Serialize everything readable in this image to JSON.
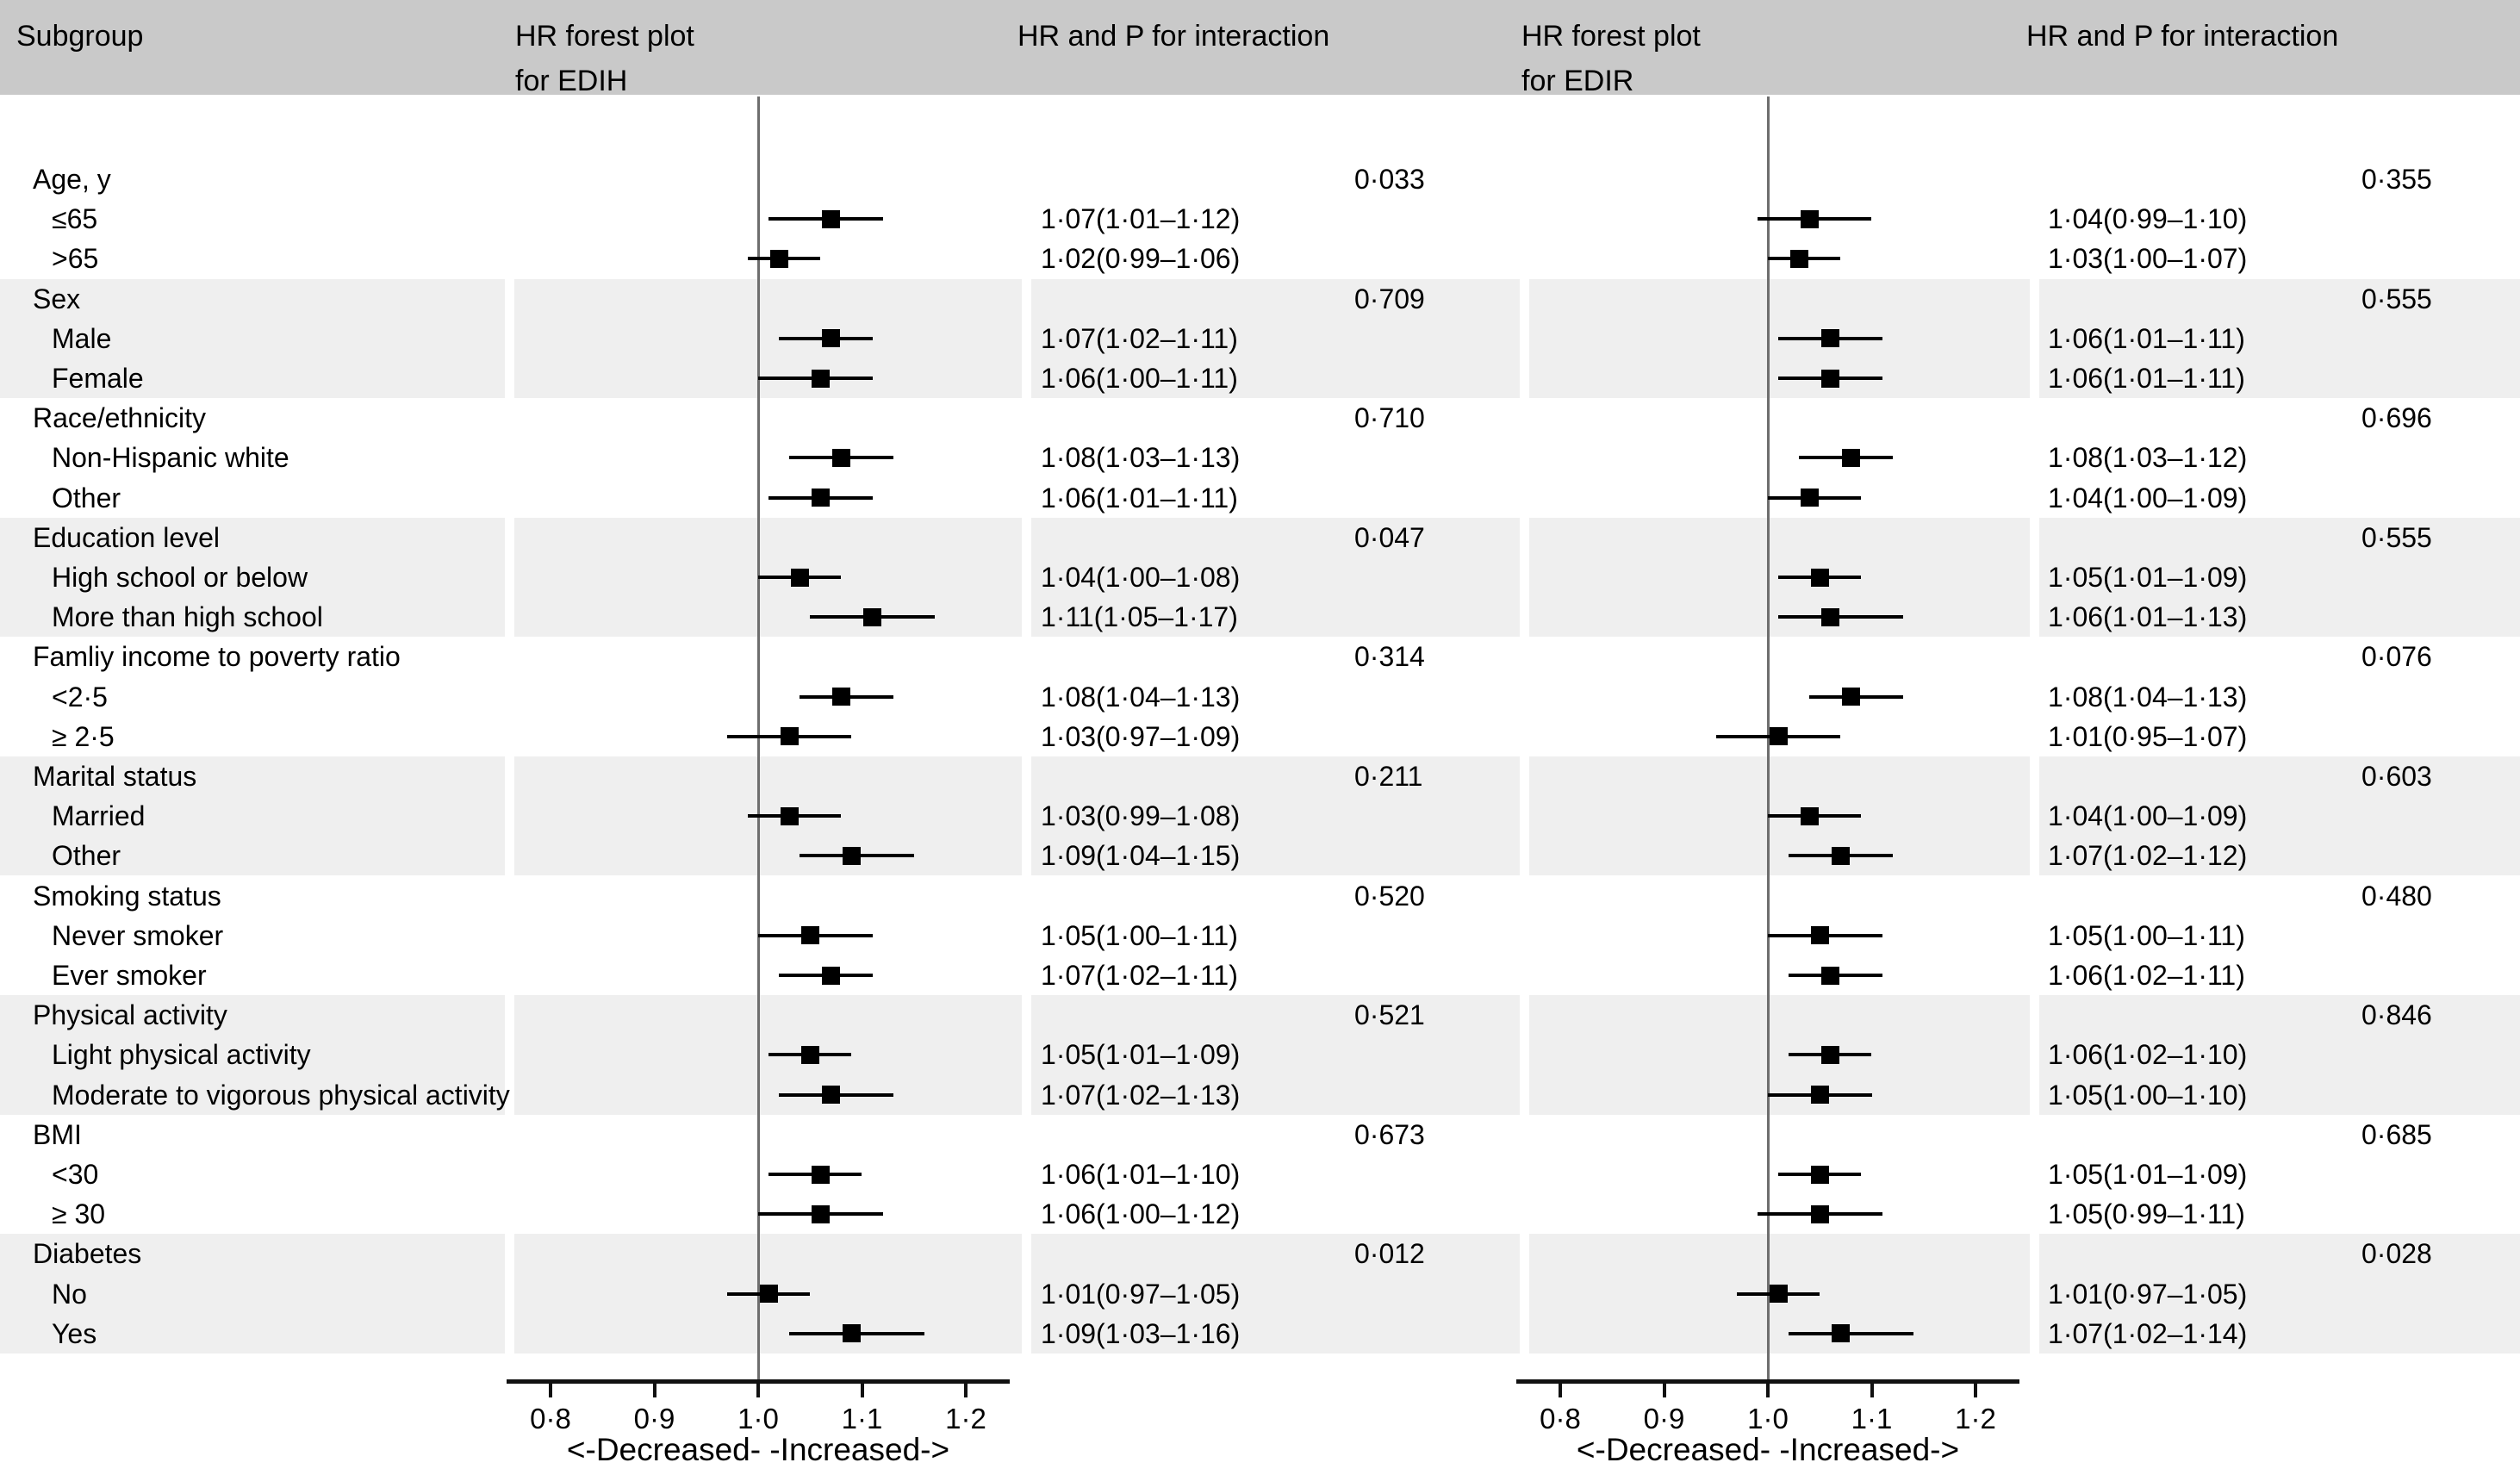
{
  "header": {
    "col_subgroup": "Subgroup",
    "col_plot1_line1": "HR forest plot",
    "col_plot1_line2": "for EDIH",
    "col_hrp1": "HR and P for interaction",
    "col_plot2_line1": "HR forest plot",
    "col_plot2_line2": "for EDIR",
    "col_hrp2": "HR and P for interaction"
  },
  "axis": {
    "tick_labels": [
      "0·8",
      "0·9",
      "1·0",
      "1·1",
      "1·2"
    ],
    "tick_values": [
      0.8,
      0.9,
      1.0,
      1.1,
      1.2
    ],
    "range": [
      0.758,
      1.242
    ],
    "reference_value": 1.0,
    "direction_label": "<-Decreased- -Increased->"
  },
  "colors": {
    "header_bg": "#c9c9c9",
    "stripe_bg": "#efefef",
    "marker": "#000000",
    "reference_line": "#6e6e6e",
    "axis_line": "#111111",
    "text": "#000000"
  },
  "chart_data": {
    "type": "scatter",
    "variant": "forest-plot",
    "panels": [
      "EDIH",
      "EDIR"
    ],
    "xlabel": "<-Decreased- -Increased->",
    "xlim": [
      0.758,
      1.242
    ],
    "x_ticks": [
      0.8,
      0.9,
      1.0,
      1.1,
      1.2
    ],
    "reference_line": 1.0,
    "groups": [
      {
        "label": "Age, y",
        "p_edih": "0·033",
        "p_edir": "0·355",
        "items": [
          {
            "label": "≤65",
            "edih": {
              "hr": 1.07,
              "lo": 1.01,
              "hi": 1.12,
              "text": "1·07(1·01–1·12)"
            },
            "edir": {
              "hr": 1.04,
              "lo": 0.99,
              "hi": 1.1,
              "text": "1·04(0·99–1·10)"
            }
          },
          {
            "label": ">65",
            "edih": {
              "hr": 1.02,
              "lo": 0.99,
              "hi": 1.06,
              "text": "1·02(0·99–1·06)"
            },
            "edir": {
              "hr": 1.03,
              "lo": 1.0,
              "hi": 1.07,
              "text": "1·03(1·00–1·07)"
            }
          }
        ]
      },
      {
        "label": "Sex",
        "p_edih": "0·709",
        "p_edir": "0·555",
        "items": [
          {
            "label": "Male",
            "edih": {
              "hr": 1.07,
              "lo": 1.02,
              "hi": 1.11,
              "text": "1·07(1·02–1·11)"
            },
            "edir": {
              "hr": 1.06,
              "lo": 1.01,
              "hi": 1.11,
              "text": "1·06(1·01–1·11)"
            }
          },
          {
            "label": "Female",
            "edih": {
              "hr": 1.06,
              "lo": 1.0,
              "hi": 1.11,
              "text": "1·06(1·00–1·11)"
            },
            "edir": {
              "hr": 1.06,
              "lo": 1.01,
              "hi": 1.11,
              "text": "1·06(1·01–1·11)"
            }
          }
        ]
      },
      {
        "label": "Race/ethnicity",
        "p_edih": "0·710",
        "p_edir": "0·696",
        "items": [
          {
            "label": "Non-Hispanic white",
            "edih": {
              "hr": 1.08,
              "lo": 1.03,
              "hi": 1.13,
              "text": "1·08(1·03–1·13)"
            },
            "edir": {
              "hr": 1.08,
              "lo": 1.03,
              "hi": 1.12,
              "text": "1·08(1·03–1·12)"
            }
          },
          {
            "label": "Other",
            "edih": {
              "hr": 1.06,
              "lo": 1.01,
              "hi": 1.11,
              "text": "1·06(1·01–1·11)"
            },
            "edir": {
              "hr": 1.04,
              "lo": 1.0,
              "hi": 1.09,
              "text": "1·04(1·00–1·09)"
            }
          }
        ]
      },
      {
        "label": "Education level",
        "p_edih": "0·047",
        "p_edir": "0·555",
        "items": [
          {
            "label": "High school or below",
            "edih": {
              "hr": 1.04,
              "lo": 1.0,
              "hi": 1.08,
              "text": "1·04(1·00–1·08)"
            },
            "edir": {
              "hr": 1.05,
              "lo": 1.01,
              "hi": 1.09,
              "text": "1·05(1·01–1·09)"
            }
          },
          {
            "label": "More than high school",
            "edih": {
              "hr": 1.11,
              "lo": 1.05,
              "hi": 1.17,
              "text": "1·11(1·05–1·17)"
            },
            "edir": {
              "hr": 1.06,
              "lo": 1.01,
              "hi": 1.13,
              "text": "1·06(1·01–1·13)"
            }
          }
        ]
      },
      {
        "label": "Famliy income to poverty ratio",
        "p_edih": "0·314",
        "p_edir": "0·076",
        "items": [
          {
            "label": "<2·5",
            "edih": {
              "hr": 1.08,
              "lo": 1.04,
              "hi": 1.13,
              "text": "1·08(1·04–1·13)"
            },
            "edir": {
              "hr": 1.08,
              "lo": 1.04,
              "hi": 1.13,
              "text": "1·08(1·04–1·13)"
            }
          },
          {
            "label": "≥ 2·5",
            "edih": {
              "hr": 1.03,
              "lo": 0.97,
              "hi": 1.09,
              "text": "1·03(0·97–1·09)"
            },
            "edir": {
              "hr": 1.01,
              "lo": 0.95,
              "hi": 1.07,
              "text": "1·01(0·95–1·07)"
            }
          }
        ]
      },
      {
        "label": "Marital status",
        "p_edih": "0·211",
        "p_edir": "0·603",
        "items": [
          {
            "label": "Married",
            "edih": {
              "hr": 1.03,
              "lo": 0.99,
              "hi": 1.08,
              "text": "1·03(0·99–1·08)"
            },
            "edir": {
              "hr": 1.04,
              "lo": 1.0,
              "hi": 1.09,
              "text": "1·04(1·00–1·09)"
            }
          },
          {
            "label": "Other",
            "edih": {
              "hr": 1.09,
              "lo": 1.04,
              "hi": 1.15,
              "text": "1·09(1·04–1·15)"
            },
            "edir": {
              "hr": 1.07,
              "lo": 1.02,
              "hi": 1.12,
              "text": "1·07(1·02–1·12)"
            }
          }
        ]
      },
      {
        "label": "Smoking status",
        "p_edih": "0·520",
        "p_edir": "0·480",
        "items": [
          {
            "label": "Never smoker",
            "edih": {
              "hr": 1.05,
              "lo": 1.0,
              "hi": 1.11,
              "text": "1·05(1·00–1·11)"
            },
            "edir": {
              "hr": 1.05,
              "lo": 1.0,
              "hi": 1.11,
              "text": "1·05(1·00–1·11)"
            }
          },
          {
            "label": "Ever smoker",
            "edih": {
              "hr": 1.07,
              "lo": 1.02,
              "hi": 1.11,
              "text": "1·07(1·02–1·11)"
            },
            "edir": {
              "hr": 1.06,
              "lo": 1.02,
              "hi": 1.11,
              "text": "1·06(1·02–1·11)"
            }
          }
        ]
      },
      {
        "label": "Physical activity",
        "p_edih": "0·521",
        "p_edir": "0·846",
        "items": [
          {
            "label": "Light physical activity",
            "edih": {
              "hr": 1.05,
              "lo": 1.01,
              "hi": 1.09,
              "text": "1·05(1·01–1·09)"
            },
            "edir": {
              "hr": 1.06,
              "lo": 1.02,
              "hi": 1.1,
              "text": "1·06(1·02–1·10)"
            }
          },
          {
            "label": "Moderate to vigorous physical activity",
            "edih": {
              "hr": 1.07,
              "lo": 1.02,
              "hi": 1.13,
              "text": "1·07(1·02–1·13)"
            },
            "edir": {
              "hr": 1.05,
              "lo": 1.0,
              "hi": 1.1,
              "text": "1·05(1·00–1·10)"
            }
          }
        ]
      },
      {
        "label": "BMI",
        "p_edih": "0·673",
        "p_edir": "0·685",
        "items": [
          {
            "label": "<30",
            "edih": {
              "hr": 1.06,
              "lo": 1.01,
              "hi": 1.1,
              "text": "1·06(1·01–1·10)"
            },
            "edir": {
              "hr": 1.05,
              "lo": 1.01,
              "hi": 1.09,
              "text": "1·05(1·01–1·09)"
            }
          },
          {
            "label": "≥ 30",
            "edih": {
              "hr": 1.06,
              "lo": 1.0,
              "hi": 1.12,
              "text": "1·06(1·00–1·12)"
            },
            "edir": {
              "hr": 1.05,
              "lo": 0.99,
              "hi": 1.11,
              "text": "1·05(0·99–1·11)"
            }
          }
        ]
      },
      {
        "label": "Diabetes",
        "p_edih": "0·012",
        "p_edir": "0·028",
        "items": [
          {
            "label": "No",
            "edih": {
              "hr": 1.01,
              "lo": 0.97,
              "hi": 1.05,
              "text": "1·01(0·97–1·05)"
            },
            "edir": {
              "hr": 1.01,
              "lo": 0.97,
              "hi": 1.05,
              "text": "1·01(0·97–1·05)"
            }
          },
          {
            "label": "Yes",
            "edih": {
              "hr": 1.09,
              "lo": 1.03,
              "hi": 1.16,
              "text": "1·09(1·03–1·16)"
            },
            "edir": {
              "hr": 1.07,
              "lo": 1.02,
              "hi": 1.14,
              "text": "1·07(1·02–1·14)"
            }
          }
        ]
      }
    ]
  }
}
